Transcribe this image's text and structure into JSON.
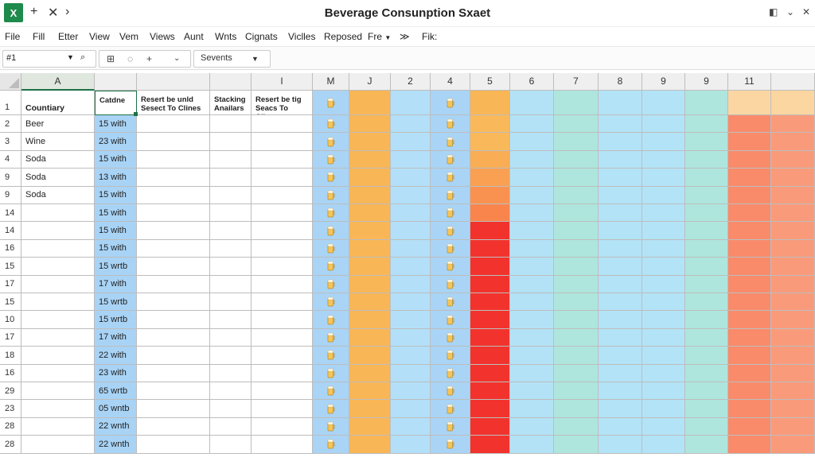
{
  "app": {
    "title": "Beverage Consunption Sxaet",
    "logo_letter": "X",
    "icons": [
      "excel-logo-icon",
      "plus-icon",
      "close-icon",
      "chevron-right-icon",
      "restore-icon",
      "minimize-icon",
      "close-window-icon"
    ]
  },
  "menu": [
    "File",
    "Fill",
    "Etter",
    "View",
    "Vem",
    "Views",
    "Aunt",
    "Wnts",
    "Cignats",
    "Viclles",
    "Reposed",
    "Fre",
    "≫",
    "Fik:"
  ],
  "toolbar": {
    "name_box": "#1",
    "name_box_icons": [
      "dropdown-icon",
      "search-icon"
    ],
    "group_icons": [
      "freeze-icon",
      "undo-icon",
      "plus-icon",
      "chevron-down-icon"
    ],
    "format_value": "Sevents"
  },
  "columns": [
    "A",
    "",
    "",
    "",
    "I",
    "M",
    "J",
    "2",
    "4",
    "5",
    "6",
    "7",
    "8",
    "9",
    "9",
    "11"
  ],
  "header_row": {
    "row_number": "1",
    "cells": [
      "Countiary",
      "Catdne",
      "Resert be unld Sesect To Clines",
      "Stacking Anailars",
      "Resert be tig Seacs To Clines"
    ]
  },
  "rows": [
    {
      "num": "2",
      "name": "Beer",
      "val": "15 with"
    },
    {
      "num": "3",
      "name": "Wine",
      "val": "23 with"
    },
    {
      "num": "4",
      "name": "Soda",
      "val": "15 with"
    },
    {
      "num": "9",
      "name": "Soda",
      "val": "13 with"
    },
    {
      "num": "9",
      "name": "Soda",
      "val": "15 with"
    },
    {
      "num": "14",
      "name": "",
      "val": "15 with"
    },
    {
      "num": "14",
      "name": "",
      "val": "15 with"
    },
    {
      "num": "16",
      "name": "",
      "val": "15 with"
    },
    {
      "num": "15",
      "name": "",
      "val": "15 wrtb"
    },
    {
      "num": "17",
      "name": "",
      "val": "17 with"
    },
    {
      "num": "15",
      "name": "",
      "val": "15 wrtb"
    },
    {
      "num": "10",
      "name": "",
      "val": "15 wrtb"
    },
    {
      "num": "17",
      "name": "",
      "val": "17 with"
    },
    {
      "num": "18",
      "name": "",
      "val": "22 with"
    },
    {
      "num": "16",
      "name": "",
      "val": "23 with"
    },
    {
      "num": "29",
      "name": "",
      "val": "65 wrtb"
    },
    {
      "num": "23",
      "name": "",
      "val": "05 wntb"
    },
    {
      "num": "28",
      "name": "",
      "val": "22 wnth"
    },
    {
      "num": "28",
      "name": "",
      "val": "22 wnth"
    }
  ],
  "colors": {
    "col_I": "#a9d4f5",
    "col_M": "#f9b656",
    "col_J": "#b3e0f8",
    "col_2": "#a9d4f5",
    "col_5": "#b3e2f6",
    "col_6": "#aee6de",
    "col_7": "#b3e3f6",
    "col_8": "#b3e3f6",
    "col_9": "#aee6de",
    "col_9b_header": "#fbd6a2",
    "col_11_header": "#fbd6a0",
    "col_9b": "#f98b6b",
    "col_11": "#f99b7b",
    "col_4_gradient": [
      "#f9b95a",
      "#f9b85a",
      "#f9ad55",
      "#f9a052",
      "#f99250",
      "#f9844c",
      "#f24235"
    ],
    "col_4_red": "#f2332d",
    "catdne_fill": "#a8d3f5",
    "accent_green": "#1e8a4c"
  }
}
